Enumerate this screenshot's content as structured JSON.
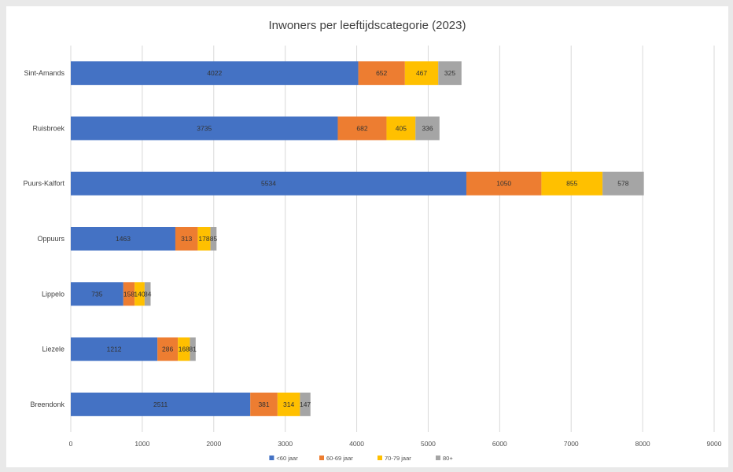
{
  "chart_data": {
    "type": "bar",
    "orientation": "horizontal",
    "stacked": true,
    "title": "Inwoners per leeftijdscategorie (2023)",
    "categories": [
      "Sint-Amands",
      "Ruisbroek",
      "Puurs-Kalfort",
      "Oppuurs",
      "Lippelo",
      "Liezele",
      "Breendonk"
    ],
    "series": [
      {
        "name": "<60 jaar",
        "color": "#4472c4",
        "values": [
          4022,
          3735,
          5534,
          1463,
          735,
          1212,
          2511
        ]
      },
      {
        "name": "60-69 jaar",
        "color": "#ed7d31",
        "values": [
          652,
          682,
          1050,
          313,
          158,
          286,
          381
        ]
      },
      {
        "name": "70-79 jaar",
        "color": "#ffc000",
        "values": [
          467,
          405,
          855,
          178,
          140,
          168,
          314
        ]
      },
      {
        "name": "80+",
        "color": "#a5a5a5",
        "values": [
          325,
          336,
          578,
          85,
          84,
          81,
          147
        ]
      }
    ],
    "data_labels": [
      [
        "4022",
        "652",
        "467",
        "325"
      ],
      [
        "3735",
        "682",
        "405",
        "336"
      ],
      [
        "5534",
        "1050",
        "855",
        "578"
      ],
      [
        "1463",
        "313",
        "178",
        "85"
      ],
      [
        "735",
        "158",
        "140",
        "84"
      ],
      [
        "1212",
        "286",
        "168",
        "81"
      ],
      [
        "2511",
        "381",
        "314",
        "147"
      ]
    ],
    "xlim": [
      0,
      9000
    ],
    "xticks": [
      0,
      1000,
      2000,
      3000,
      4000,
      5000,
      6000,
      7000,
      8000,
      9000
    ],
    "grid": true,
    "legend_position": "bottom"
  }
}
